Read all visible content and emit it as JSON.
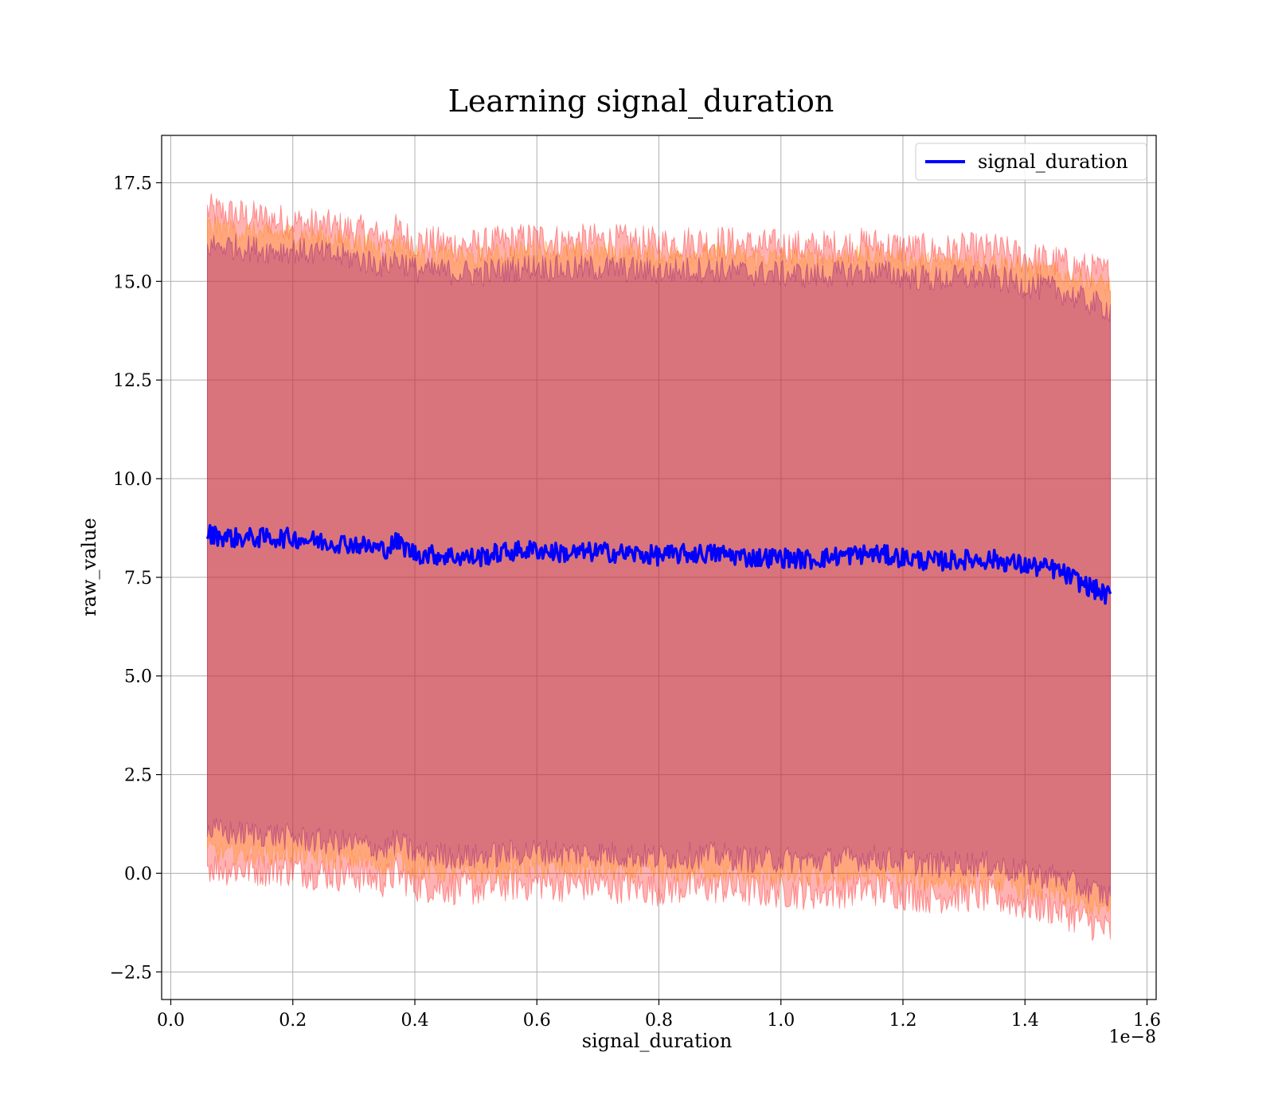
{
  "chart_data": {
    "type": "line",
    "title": "Learning signal_duration",
    "xlabel": "signal_duration",
    "ylabel": "raw_value",
    "x_offset_label": "1e−8",
    "xlim": [
      -0.015,
      1.615
    ],
    "ylim": [
      -3.2,
      18.7
    ],
    "x_ticks": [
      0.0,
      0.2,
      0.4,
      0.6,
      0.8,
      1.0,
      1.2,
      1.4,
      1.6
    ],
    "x_tick_labels": [
      "0.0",
      "0.2",
      "0.4",
      "0.6",
      "0.8",
      "1.0",
      "1.2",
      "1.4",
      "1.6"
    ],
    "y_ticks": [
      -2.5,
      0.0,
      2.5,
      5.0,
      7.5,
      10.0,
      12.5,
      15.0,
      17.5
    ],
    "y_tick_labels": [
      "−2.5",
      "0.0",
      "2.5",
      "5.0",
      "7.5",
      "10.0",
      "12.5",
      "15.0",
      "17.5"
    ],
    "grid": true,
    "legend_position": "top-right",
    "series": [
      {
        "name": "signal_duration",
        "color": "#0000ff",
        "x": [
          0.06,
          0.1,
          0.15,
          0.2,
          0.25,
          0.3,
          0.35,
          0.37,
          0.4,
          0.45,
          0.5,
          0.55,
          0.6,
          0.65,
          0.7,
          0.75,
          0.8,
          0.85,
          0.9,
          0.95,
          1.0,
          1.05,
          1.1,
          1.15,
          1.2,
          1.25,
          1.3,
          1.35,
          1.4,
          1.45,
          1.5,
          1.54
        ],
        "y": [
          8.6,
          8.5,
          8.5,
          8.5,
          8.4,
          8.35,
          8.2,
          8.4,
          8.1,
          8.05,
          8.0,
          8.15,
          8.2,
          8.1,
          8.15,
          8.1,
          8.05,
          8.1,
          8.1,
          8.0,
          8.0,
          7.95,
          8.05,
          8.1,
          8.0,
          7.9,
          7.95,
          7.95,
          7.8,
          7.7,
          7.3,
          7.0
        ],
        "noise": 0.25
      }
    ],
    "bands": [
      {
        "color": "#ff0000",
        "upper": [
          16.8,
          16.7,
          16.6,
          16.5,
          16.4,
          16.3,
          16.1,
          16.3,
          16.0,
          15.95,
          15.9,
          16.0,
          16.1,
          16.0,
          16.05,
          16.0,
          15.95,
          16.0,
          16.0,
          15.9,
          15.9,
          15.85,
          15.9,
          15.95,
          15.85,
          15.75,
          15.8,
          15.8,
          15.6,
          15.5,
          15.3,
          15.2
        ],
        "lower": [
          0.2,
          0.1,
          0.1,
          0.1,
          0.0,
          -0.05,
          -0.2,
          0.0,
          -0.3,
          -0.35,
          -0.4,
          -0.3,
          -0.25,
          -0.3,
          -0.3,
          -0.35,
          -0.4,
          -0.35,
          -0.35,
          -0.45,
          -0.45,
          -0.5,
          -0.45,
          -0.4,
          -0.5,
          -0.6,
          -0.55,
          -0.6,
          -0.8,
          -0.9,
          -1.2,
          -1.5
        ],
        "noise": 0.45
      },
      {
        "color": "#ff8c00",
        "upper": [
          16.4,
          16.3,
          16.2,
          16.2,
          16.1,
          16.0,
          15.8,
          16.0,
          15.7,
          15.65,
          15.6,
          15.7,
          15.8,
          15.7,
          15.75,
          15.7,
          15.65,
          15.7,
          15.7,
          15.6,
          15.6,
          15.55,
          15.6,
          15.65,
          15.55,
          15.45,
          15.5,
          15.5,
          15.3,
          15.2,
          15.0,
          14.9
        ],
        "lower": [
          0.6,
          0.5,
          0.5,
          0.5,
          0.4,
          0.35,
          0.2,
          0.4,
          0.1,
          0.05,
          0.0,
          0.1,
          0.15,
          0.1,
          0.1,
          0.05,
          0.0,
          0.05,
          0.05,
          -0.05,
          -0.05,
          -0.1,
          -0.05,
          0.0,
          -0.1,
          -0.2,
          -0.15,
          -0.2,
          -0.4,
          -0.5,
          -0.8,
          -1.0
        ],
        "noise": 0.3
      },
      {
        "color": "#800080",
        "upper": [
          15.9,
          15.9,
          15.8,
          15.8,
          15.7,
          15.6,
          15.4,
          15.6,
          15.3,
          15.25,
          15.2,
          15.3,
          15.4,
          15.3,
          15.35,
          15.3,
          15.25,
          15.3,
          15.3,
          15.2,
          15.2,
          15.15,
          15.2,
          15.25,
          15.15,
          15.05,
          15.1,
          15.1,
          14.9,
          14.8,
          14.5,
          14.3
        ],
        "lower": [
          1.1,
          1.0,
          1.0,
          0.9,
          0.8,
          0.75,
          0.6,
          0.8,
          0.5,
          0.45,
          0.4,
          0.5,
          0.55,
          0.5,
          0.5,
          0.45,
          0.4,
          0.45,
          0.45,
          0.35,
          0.35,
          0.3,
          0.35,
          0.4,
          0.3,
          0.2,
          0.25,
          0.2,
          0.0,
          -0.1,
          -0.4,
          -0.6
        ],
        "noise": 0.35
      }
    ]
  }
}
